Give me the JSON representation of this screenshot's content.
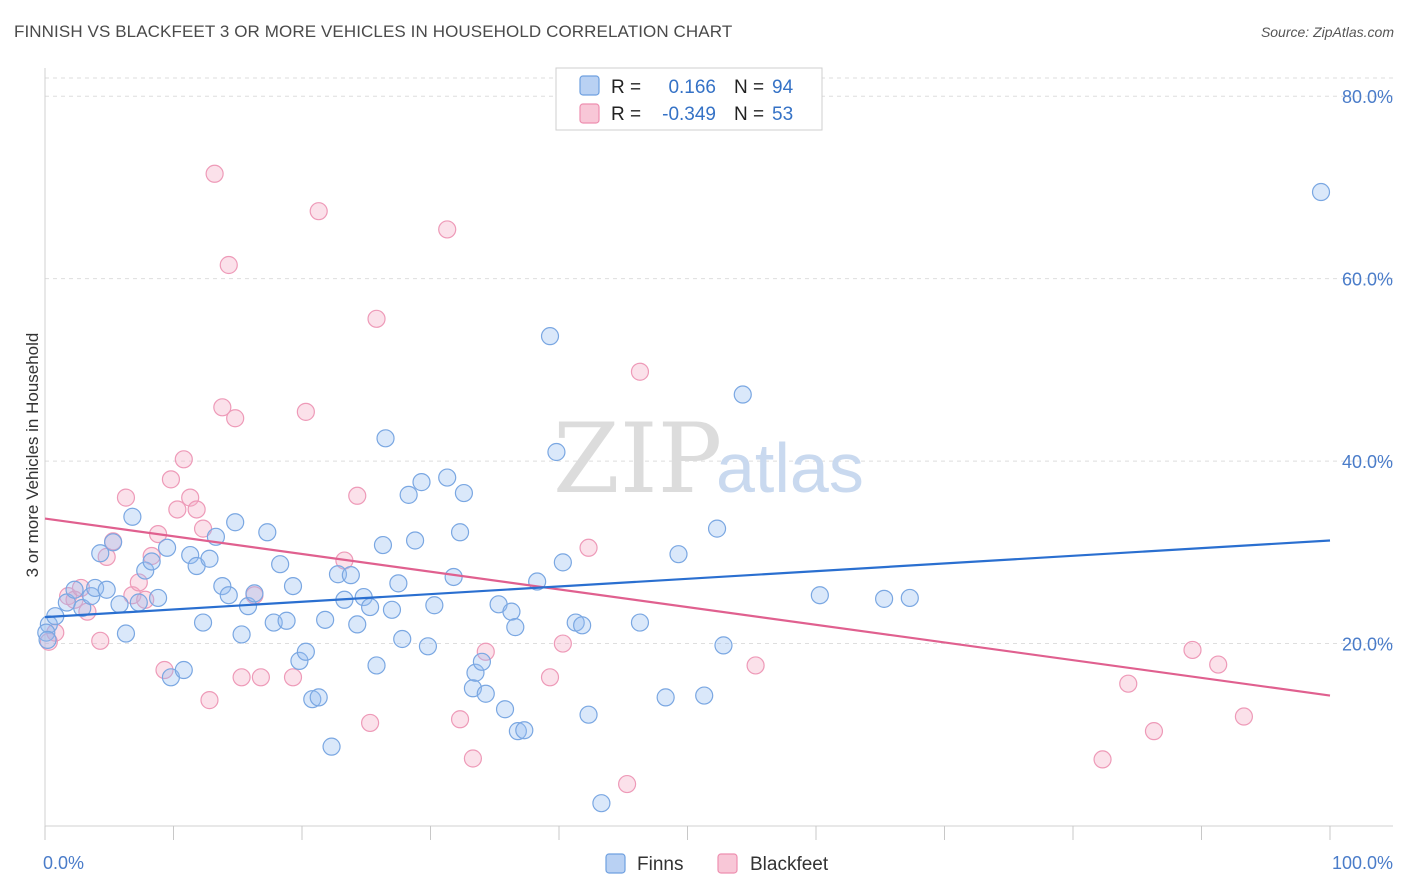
{
  "header": {
    "title": "FINNISH VS BLACKFEET 3 OR MORE VEHICLES IN HOUSEHOLD CORRELATION CHART",
    "source": "Source: ZipAtlas.com"
  },
  "watermark": {
    "part1": "ZIP",
    "part2": "atlas"
  },
  "legend": {
    "rows": [
      {
        "r_label": "R =",
        "r_value": "0.166",
        "n_label": "N =",
        "n_value": "94",
        "color": "#6fa0e0"
      },
      {
        "r_label": "R =",
        "r_value": "-0.349",
        "n_label": "N =",
        "n_value": "53",
        "color": "#ee8fb0"
      }
    ]
  },
  "bottom_legend": [
    "Finns",
    "Blackfeet"
  ],
  "chart_data": {
    "type": "scatter",
    "title": "FINNISH VS BLACKFEET 3 OR MORE VEHICLES IN HOUSEHOLD CORRELATION CHART",
    "xlabel": "",
    "ylabel": "3 or more Vehicles in Household",
    "xlim": [
      0,
      100
    ],
    "ylim": [
      0,
      82
    ],
    "x_tick_labels": [
      "0.0%",
      "100.0%"
    ],
    "y_ticks": [
      20,
      40,
      60,
      80
    ],
    "y_tick_labels": [
      "20.0%",
      "40.0%",
      "60.0%",
      "80.0%"
    ],
    "grid": true,
    "legend_position": "top-center",
    "colors": {
      "finns": "#6fa0e0",
      "finns_line": "#2a6fd0",
      "blackfeet": "#ee8fb0",
      "blackfeet_line": "#e0608f",
      "axis_text": "#4a7cc9"
    },
    "series": [
      {
        "name": "Finns",
        "r": 0.166,
        "n": 94,
        "trend": {
          "x": [
            0,
            100
          ],
          "y": [
            22.9,
            31.3
          ]
        },
        "points": [
          [
            0.3,
            22.1
          ],
          [
            0.8,
            23.0
          ],
          [
            1.7,
            24.5
          ],
          [
            2.3,
            25.9
          ],
          [
            2.9,
            23.9
          ],
          [
            3.6,
            25.2
          ],
          [
            3.9,
            26.1
          ],
          [
            4.3,
            29.9
          ],
          [
            4.8,
            25.9
          ],
          [
            5.3,
            31.1
          ],
          [
            5.8,
            24.3
          ],
          [
            6.3,
            21.1
          ],
          [
            6.8,
            33.9
          ],
          [
            7.3,
            24.5
          ],
          [
            7.8,
            28.0
          ],
          [
            8.3,
            29.0
          ],
          [
            8.8,
            25.0
          ],
          [
            9.5,
            30.5
          ],
          [
            9.8,
            16.3
          ],
          [
            10.8,
            17.1
          ],
          [
            11.3,
            29.7
          ],
          [
            11.8,
            28.5
          ],
          [
            12.3,
            22.3
          ],
          [
            12.8,
            29.3
          ],
          [
            13.3,
            31.7
          ],
          [
            13.8,
            26.3
          ],
          [
            14.3,
            25.3
          ],
          [
            14.8,
            33.3
          ],
          [
            15.3,
            21.0
          ],
          [
            15.8,
            24.1
          ],
          [
            16.3,
            25.5
          ],
          [
            17.3,
            32.2
          ],
          [
            17.8,
            22.3
          ],
          [
            18.3,
            28.7
          ],
          [
            18.8,
            22.5
          ],
          [
            19.3,
            26.3
          ],
          [
            19.8,
            18.1
          ],
          [
            20.3,
            19.1
          ],
          [
            20.8,
            13.9
          ],
          [
            21.3,
            14.1
          ],
          [
            21.8,
            22.6
          ],
          [
            22.3,
            8.7
          ],
          [
            22.8,
            27.6
          ],
          [
            23.3,
            24.8
          ],
          [
            23.8,
            27.5
          ],
          [
            24.3,
            22.1
          ],
          [
            24.8,
            25.1
          ],
          [
            25.3,
            24.0
          ],
          [
            25.8,
            17.6
          ],
          [
            26.3,
            30.8
          ],
          [
            26.5,
            42.5
          ],
          [
            27.0,
            23.7
          ],
          [
            27.5,
            26.6
          ],
          [
            27.8,
            20.5
          ],
          [
            28.3,
            36.3
          ],
          [
            28.8,
            31.3
          ],
          [
            29.3,
            37.7
          ],
          [
            29.8,
            19.7
          ],
          [
            30.3,
            24.2
          ],
          [
            31.3,
            38.2
          ],
          [
            31.8,
            27.3
          ],
          [
            32.3,
            32.2
          ],
          [
            32.6,
            36.5
          ],
          [
            33.3,
            15.1
          ],
          [
            33.5,
            16.8
          ],
          [
            34.0,
            18.0
          ],
          [
            34.3,
            14.5
          ],
          [
            35.3,
            24.3
          ],
          [
            35.8,
            12.8
          ],
          [
            36.3,
            23.5
          ],
          [
            36.6,
            21.8
          ],
          [
            36.8,
            10.4
          ],
          [
            37.3,
            10.5
          ],
          [
            38.3,
            26.8
          ],
          [
            39.3,
            53.7
          ],
          [
            39.8,
            41.0
          ],
          [
            40.3,
            28.9
          ],
          [
            41.3,
            22.3
          ],
          [
            41.8,
            22.0
          ],
          [
            42.3,
            12.2
          ],
          [
            43.3,
            2.5
          ],
          [
            46.3,
            22.3
          ],
          [
            48.3,
            14.1
          ],
          [
            49.3,
            29.8
          ],
          [
            51.3,
            14.3
          ],
          [
            52.3,
            32.6
          ],
          [
            52.8,
            19.8
          ],
          [
            54.3,
            47.3
          ],
          [
            60.3,
            25.3
          ],
          [
            65.3,
            24.9
          ],
          [
            67.3,
            25.0
          ],
          [
            99.3,
            69.5
          ],
          [
            0.1,
            21.2
          ],
          [
            0.2,
            20.4
          ]
        ]
      },
      {
        "name": "Blackfeet",
        "r": -0.349,
        "n": 53,
        "trend": {
          "x": [
            0,
            100
          ],
          "y": [
            33.7,
            14.3
          ]
        },
        "points": [
          [
            0.3,
            20.2
          ],
          [
            0.8,
            21.2
          ],
          [
            1.8,
            25.2
          ],
          [
            2.3,
            24.8
          ],
          [
            2.8,
            26.1
          ],
          [
            3.3,
            23.5
          ],
          [
            4.3,
            20.3
          ],
          [
            4.8,
            29.5
          ],
          [
            5.3,
            31.2
          ],
          [
            6.3,
            36.0
          ],
          [
            6.8,
            25.3
          ],
          [
            7.3,
            26.7
          ],
          [
            7.8,
            24.8
          ],
          [
            8.3,
            29.6
          ],
          [
            8.8,
            32.0
          ],
          [
            9.3,
            17.1
          ],
          [
            9.8,
            38.0
          ],
          [
            10.3,
            34.7
          ],
          [
            10.8,
            40.2
          ],
          [
            11.3,
            36.0
          ],
          [
            11.8,
            34.7
          ],
          [
            12.3,
            32.6
          ],
          [
            12.8,
            13.8
          ],
          [
            13.2,
            71.5
          ],
          [
            13.8,
            45.9
          ],
          [
            14.3,
            61.5
          ],
          [
            14.8,
            44.7
          ],
          [
            15.3,
            16.3
          ],
          [
            16.3,
            25.3
          ],
          [
            16.8,
            16.3
          ],
          [
            19.3,
            16.3
          ],
          [
            20.3,
            45.4
          ],
          [
            21.3,
            67.4
          ],
          [
            23.3,
            29.1
          ],
          [
            24.3,
            36.2
          ],
          [
            25.3,
            11.3
          ],
          [
            25.8,
            55.6
          ],
          [
            31.3,
            65.4
          ],
          [
            32.3,
            11.7
          ],
          [
            33.3,
            7.4
          ],
          [
            34.3,
            19.1
          ],
          [
            39.3,
            16.3
          ],
          [
            40.3,
            20.0
          ],
          [
            42.3,
            30.5
          ],
          [
            45.3,
            4.6
          ],
          [
            46.3,
            49.8
          ],
          [
            55.3,
            17.6
          ],
          [
            82.3,
            7.3
          ],
          [
            84.3,
            15.6
          ],
          [
            86.3,
            10.4
          ],
          [
            89.3,
            19.3
          ],
          [
            91.3,
            17.7
          ],
          [
            93.3,
            12.0
          ]
        ]
      }
    ]
  }
}
